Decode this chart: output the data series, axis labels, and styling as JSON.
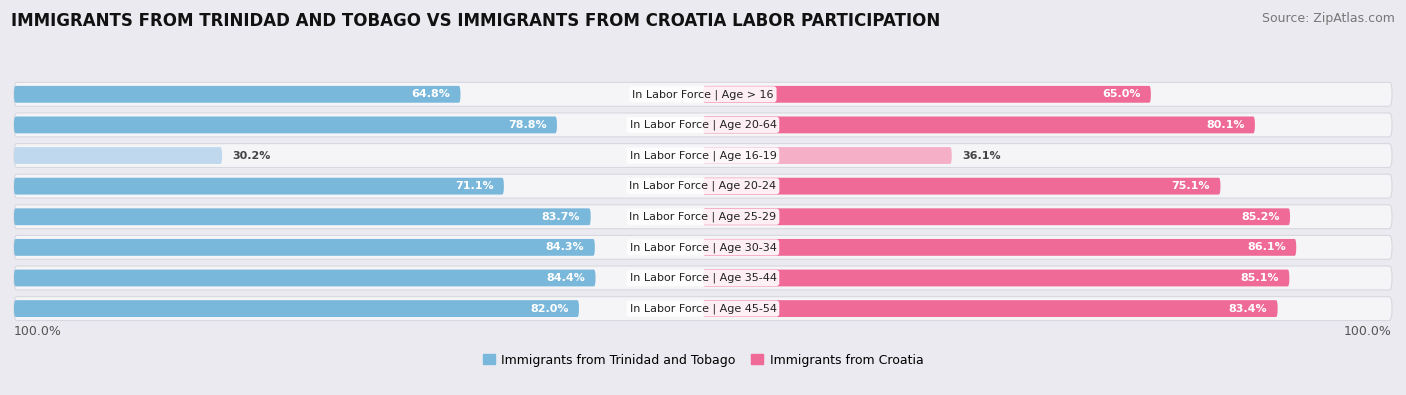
{
  "title": "IMMIGRANTS FROM TRINIDAD AND TOBAGO VS IMMIGRANTS FROM CROATIA LABOR PARTICIPATION",
  "source": "Source: ZipAtlas.com",
  "categories": [
    "In Labor Force | Age > 16",
    "In Labor Force | Age 20-64",
    "In Labor Force | Age 16-19",
    "In Labor Force | Age 20-24",
    "In Labor Force | Age 25-29",
    "In Labor Force | Age 30-34",
    "In Labor Force | Age 35-44",
    "In Labor Force | Age 45-54"
  ],
  "trinidad_values": [
    64.8,
    78.8,
    30.2,
    71.1,
    83.7,
    84.3,
    84.4,
    82.0
  ],
  "croatia_values": [
    65.0,
    80.1,
    36.1,
    75.1,
    85.2,
    86.1,
    85.1,
    83.4
  ],
  "trinidad_color": "#7ab8db",
  "croatia_color": "#ef6a96",
  "trinidad_color_light": "#c0d8ee",
  "croatia_color_light": "#f5b0c8",
  "background_color": "#eaeaf0",
  "row_bg_color": "#f5f5f8",
  "row_border_color": "#d8d8e0",
  "legend_label_trinidad": "Immigrants from Trinidad and Tobago",
  "legend_label_croatia": "Immigrants from Croatia",
  "axis_label_left": "100.0%",
  "axis_label_right": "100.0%",
  "title_fontsize": 12,
  "source_fontsize": 9,
  "label_fontsize": 9,
  "category_fontsize": 8,
  "value_fontsize": 8
}
